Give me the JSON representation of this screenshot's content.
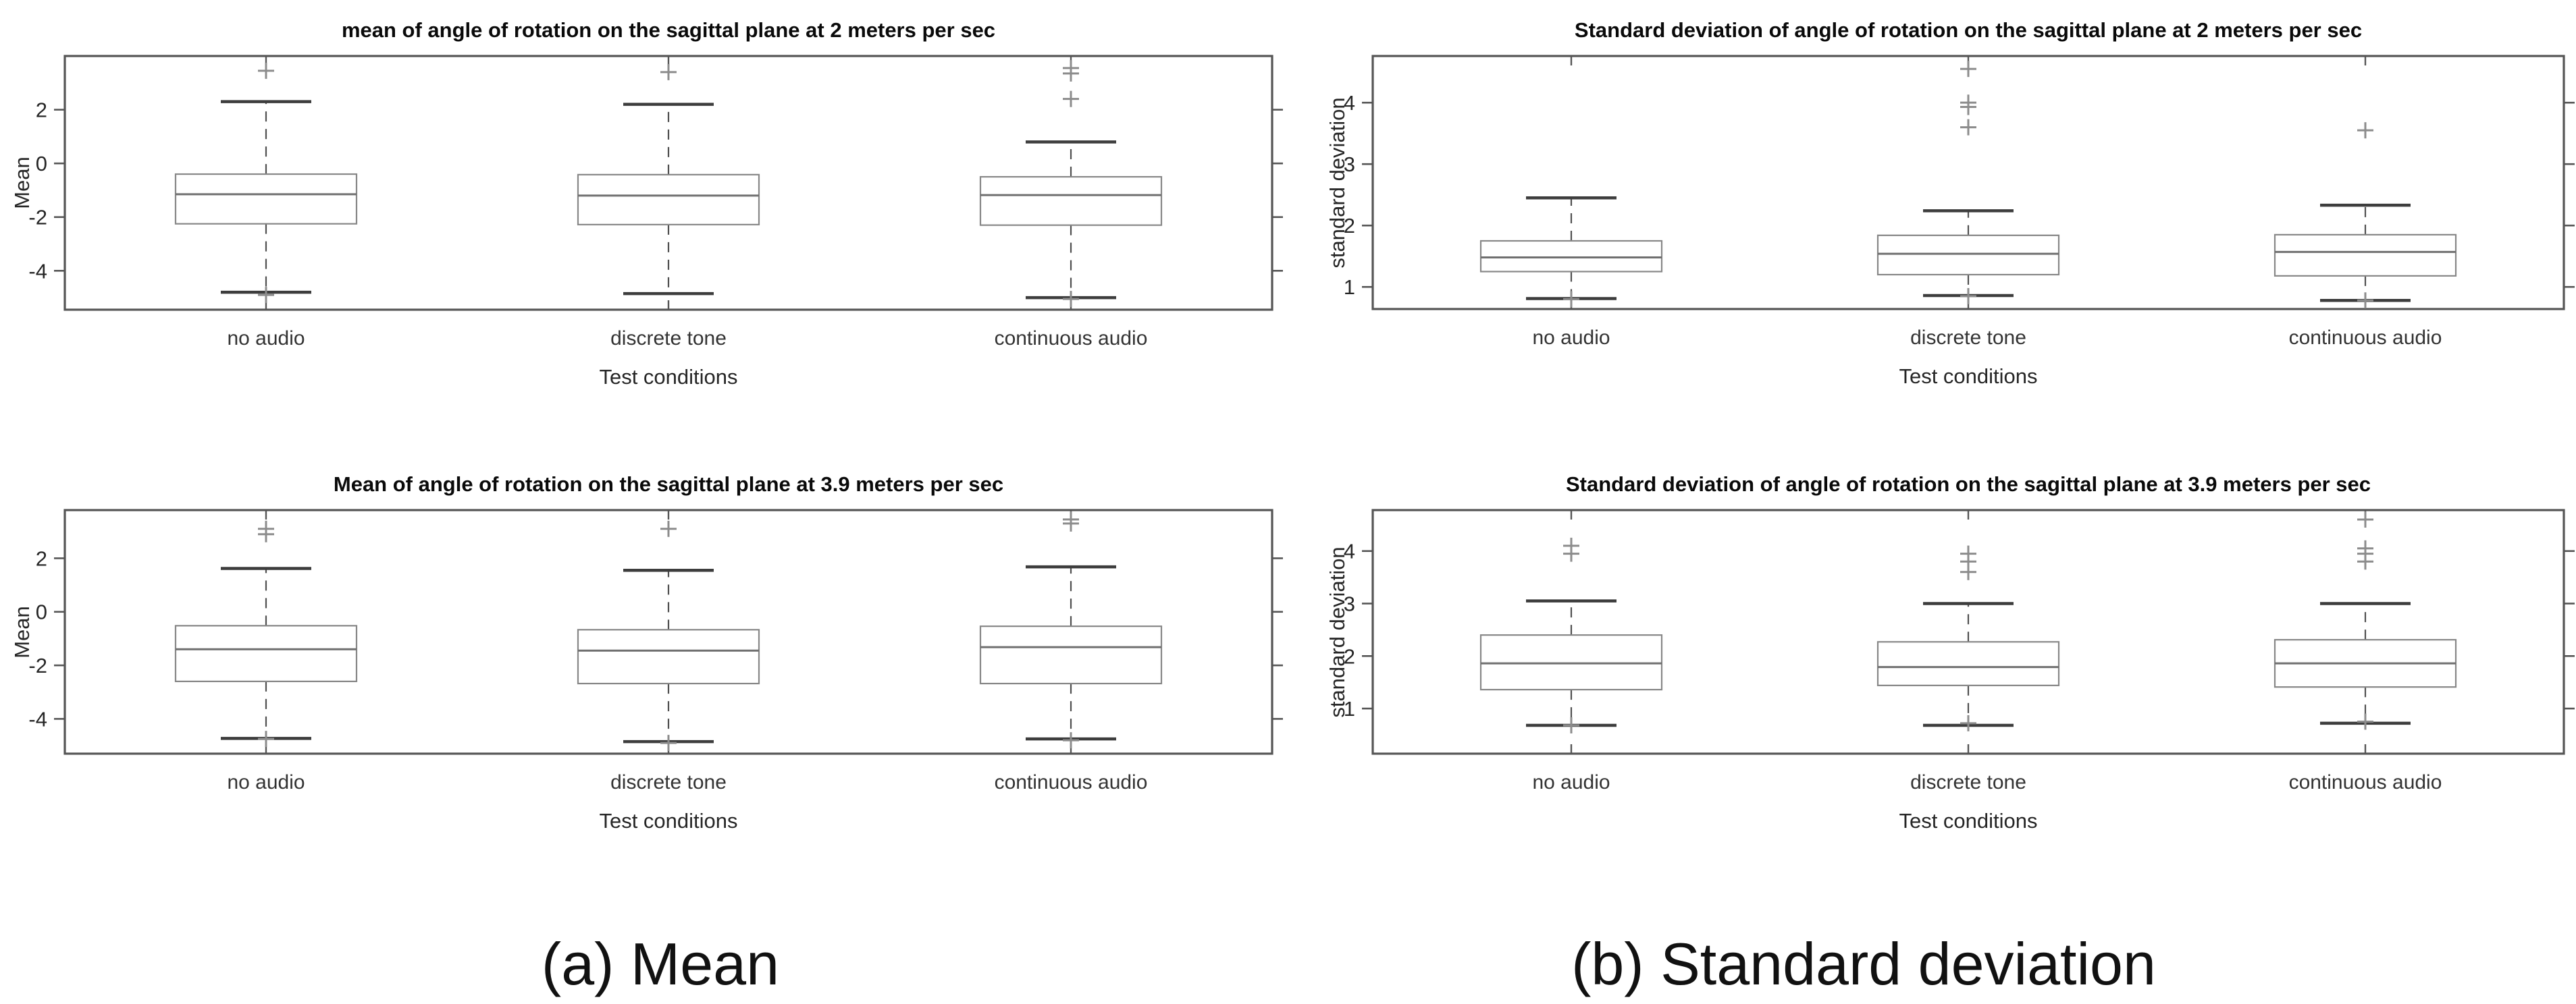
{
  "figure": {
    "background": "#ffffff",
    "text_color": "#0a0a0a",
    "axis_color": "#555555",
    "box_color": "#878787",
    "median_color": "#6f6f6f",
    "whisker_color": "#4f4f4f",
    "cap_color": "#3d3d3d",
    "outlier_color": "#8c8c8c",
    "captions": [
      {
        "label": "(a) Mean"
      },
      {
        "label": "(b) Standard deviation"
      }
    ]
  },
  "chart_data": [
    {
      "id": "mean-2ms",
      "type": "boxplot",
      "title": "mean of angle of rotation on the sagittal plane at 2 meters per sec",
      "xlabel": "Test conditions",
      "ylabel": "Mean",
      "categories": [
        "no audio",
        "discrete tone",
        "continuous audio"
      ],
      "ylim": [
        -5.45,
        4.0
      ],
      "yticks": [
        2,
        0,
        -2,
        -4
      ],
      "grid": false,
      "legend": null,
      "series": [
        {
          "category": "no audio",
          "whisker_low": -4.8,
          "q1": -2.25,
          "median": -1.15,
          "q3": -0.4,
          "whisker_high": 2.3,
          "outliers": [
            3.45,
            -4.9
          ]
        },
        {
          "category": "discrete tone",
          "whisker_low": -4.85,
          "q1": -2.28,
          "median": -1.2,
          "q3": -0.42,
          "whisker_high": 2.2,
          "outliers": [
            3.4
          ]
        },
        {
          "category": "continuous audio",
          "whisker_low": -5.0,
          "q1": -2.3,
          "median": -1.18,
          "q3": -0.5,
          "whisker_high": 0.8,
          "outliers": [
            3.55,
            3.35,
            2.4,
            -5.05
          ]
        }
      ]
    },
    {
      "id": "std-2ms",
      "type": "boxplot",
      "title": "Standard deviation of angle of rotation on the sagittal plane at 2 meters per sec",
      "xlabel": "Test conditions",
      "ylabel": "standard deviation",
      "categories": [
        "no audio",
        "discrete tone",
        "continuous audio"
      ],
      "ylim": [
        0.64,
        4.76
      ],
      "yticks": [
        4,
        3,
        2,
        1
      ],
      "grid": false,
      "legend": null,
      "series": [
        {
          "category": "no audio",
          "whisker_low": 0.81,
          "q1": 1.25,
          "median": 1.48,
          "q3": 1.75,
          "whisker_high": 2.45,
          "outliers": [
            0.8
          ]
        },
        {
          "category": "discrete tone",
          "whisker_low": 0.86,
          "q1": 1.2,
          "median": 1.54,
          "q3": 1.84,
          "whisker_high": 2.24,
          "outliers": [
            4.55,
            4.0,
            3.93,
            3.6,
            0.85
          ]
        },
        {
          "category": "continuous audio",
          "whisker_low": 0.78,
          "q1": 1.18,
          "median": 1.57,
          "q3": 1.85,
          "whisker_high": 2.33,
          "outliers": [
            3.55,
            0.78
          ]
        }
      ]
    },
    {
      "id": "mean-39ms",
      "type": "boxplot",
      "title": "Mean of angle of rotation on the sagittal plane at 3.9 meters per sec",
      "xlabel": "Test conditions",
      "ylabel": "Mean",
      "categories": [
        "no audio",
        "discrete tone",
        "continuous audio"
      ],
      "ylim": [
        -5.3,
        3.8
      ],
      "yticks": [
        2,
        0,
        -2,
        -4
      ],
      "grid": false,
      "legend": null,
      "series": [
        {
          "category": "no audio",
          "whisker_low": -4.73,
          "q1": -2.6,
          "median": -1.4,
          "q3": -0.52,
          "whisker_high": 1.62,
          "outliers": [
            3.1,
            2.9,
            -4.75
          ]
        },
        {
          "category": "discrete tone",
          "whisker_low": -4.85,
          "q1": -2.68,
          "median": -1.45,
          "q3": -0.67,
          "whisker_high": 1.55,
          "outliers": [
            3.1,
            -4.9
          ]
        },
        {
          "category": "continuous audio",
          "whisker_low": -4.75,
          "q1": -2.68,
          "median": -1.32,
          "q3": -0.54,
          "whisker_high": 1.68,
          "outliers": [
            3.45,
            3.3,
            -4.8
          ]
        }
      ]
    },
    {
      "id": "std-39ms",
      "type": "boxplot",
      "title": "Standard deviation of angle of rotation on the sagittal plane at 3.9 meters per sec",
      "xlabel": "Test conditions",
      "ylabel": "standard deviation",
      "categories": [
        "no audio",
        "discrete tone",
        "continuous audio"
      ],
      "ylim": [
        0.14,
        4.78
      ],
      "yticks": [
        4,
        3,
        2,
        1
      ],
      "grid": false,
      "legend": null,
      "series": [
        {
          "category": "no audio",
          "whisker_low": 0.68,
          "q1": 1.36,
          "median": 1.86,
          "q3": 2.4,
          "whisker_high": 3.05,
          "outliers": [
            4.1,
            3.95,
            0.68
          ]
        },
        {
          "category": "discrete tone",
          "whisker_low": 0.68,
          "q1": 1.44,
          "median": 1.79,
          "q3": 2.27,
          "whisker_high": 3.0,
          "outliers": [
            3.95,
            3.8,
            3.6,
            0.72
          ]
        },
        {
          "category": "continuous audio",
          "whisker_low": 0.72,
          "q1": 1.41,
          "median": 1.86,
          "q3": 2.31,
          "whisker_high": 3.0,
          "outliers": [
            4.6,
            4.05,
            3.95,
            3.8,
            0.75
          ]
        }
      ]
    }
  ]
}
